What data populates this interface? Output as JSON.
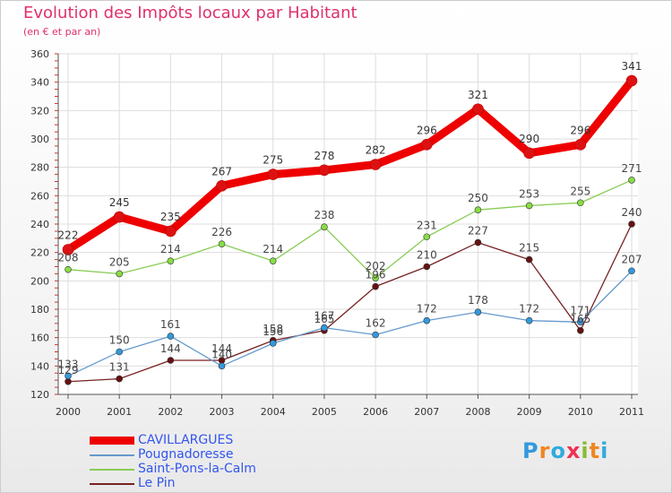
{
  "chart_data": {
    "type": "line",
    "title": "Evolution des Impôts locaux par Habitant",
    "subtitle": "(en € et par an)",
    "xlabel": "",
    "ylabel": "",
    "categories": [
      "2000",
      "2001",
      "2002",
      "2003",
      "2004",
      "2005",
      "2006",
      "2007",
      "2008",
      "2009",
      "2010",
      "2011"
    ],
    "ylim": [
      120,
      360
    ],
    "yticks": [
      120,
      140,
      160,
      180,
      200,
      220,
      240,
      260,
      280,
      300,
      320,
      340,
      360
    ],
    "grid": true,
    "legend_position": "bottom-left",
    "series": [
      {
        "name": "CAVILLARGUES",
        "color": "#ee0000",
        "values": [
          222,
          245,
          235,
          267,
          275,
          278,
          282,
          296,
          321,
          290,
          296,
          341
        ]
      },
      {
        "name": "Pougnadoresse",
        "color": "#6699cc",
        "values": [
          133,
          150,
          161,
          140,
          156,
          167,
          162,
          172,
          178,
          172,
          171,
          207
        ]
      },
      {
        "name": "Saint-Pons-la-Calm",
        "color": "#88cc55",
        "values": [
          208,
          205,
          214,
          226,
          214,
          238,
          202,
          231,
          250,
          253,
          255,
          271
        ]
      },
      {
        "name": "Le Pin",
        "color": "#772222",
        "values": [
          129,
          131,
          144,
          144,
          158,
          165,
          196,
          210,
          227,
          215,
          165,
          240
        ]
      }
    ]
  },
  "logo": {
    "letters": [
      "P",
      "r",
      "o",
      "x",
      "i",
      "t",
      "i"
    ],
    "colors": [
      "#3399dd",
      "#ee8822",
      "#33aadd",
      "#ee3355",
      "#88bb33",
      "#ee8822",
      "#33aadd"
    ]
  }
}
